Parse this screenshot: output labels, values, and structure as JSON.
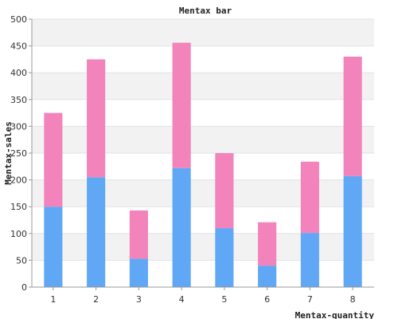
{
  "chart_data": {
    "type": "bar",
    "stacked": true,
    "title": "Mentax bar",
    "xlabel": "Mentax-quantity",
    "ylabel": "Mentax-sales",
    "categories": [
      "1",
      "2",
      "3",
      "4",
      "5",
      "6",
      "7",
      "8"
    ],
    "ylim": [
      0,
      500
    ],
    "yticks": [
      "0",
      "50",
      "100",
      "150",
      "200",
      "250",
      "300",
      "350",
      "400",
      "450",
      "500"
    ],
    "grid": true,
    "series": [
      {
        "color": "#60a8f5",
        "values": [
          150,
          205,
          53,
          222,
          110,
          40,
          101,
          207
        ]
      },
      {
        "color": "#f283bb",
        "values": [
          175,
          220,
          90,
          234,
          140,
          81,
          133,
          223
        ]
      }
    ]
  }
}
